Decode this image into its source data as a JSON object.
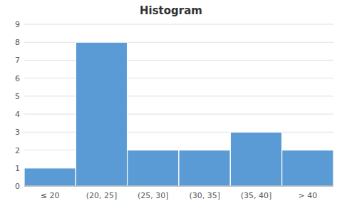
{
  "chart_data": {
    "type": "bar",
    "title": "Histogram",
    "categories": [
      "≤ 20",
      "(20, 25]",
      "(25, 30]",
      "(30, 35]",
      "(35, 40]",
      "> 40"
    ],
    "values": [
      1,
      8,
      2,
      2,
      3,
      2
    ],
    "color": "#5B9BD5",
    "ylim": [
      0,
      9
    ],
    "yticks": [
      0,
      1,
      2,
      3,
      4,
      5,
      6,
      7,
      8,
      9
    ],
    "grid": true
  }
}
